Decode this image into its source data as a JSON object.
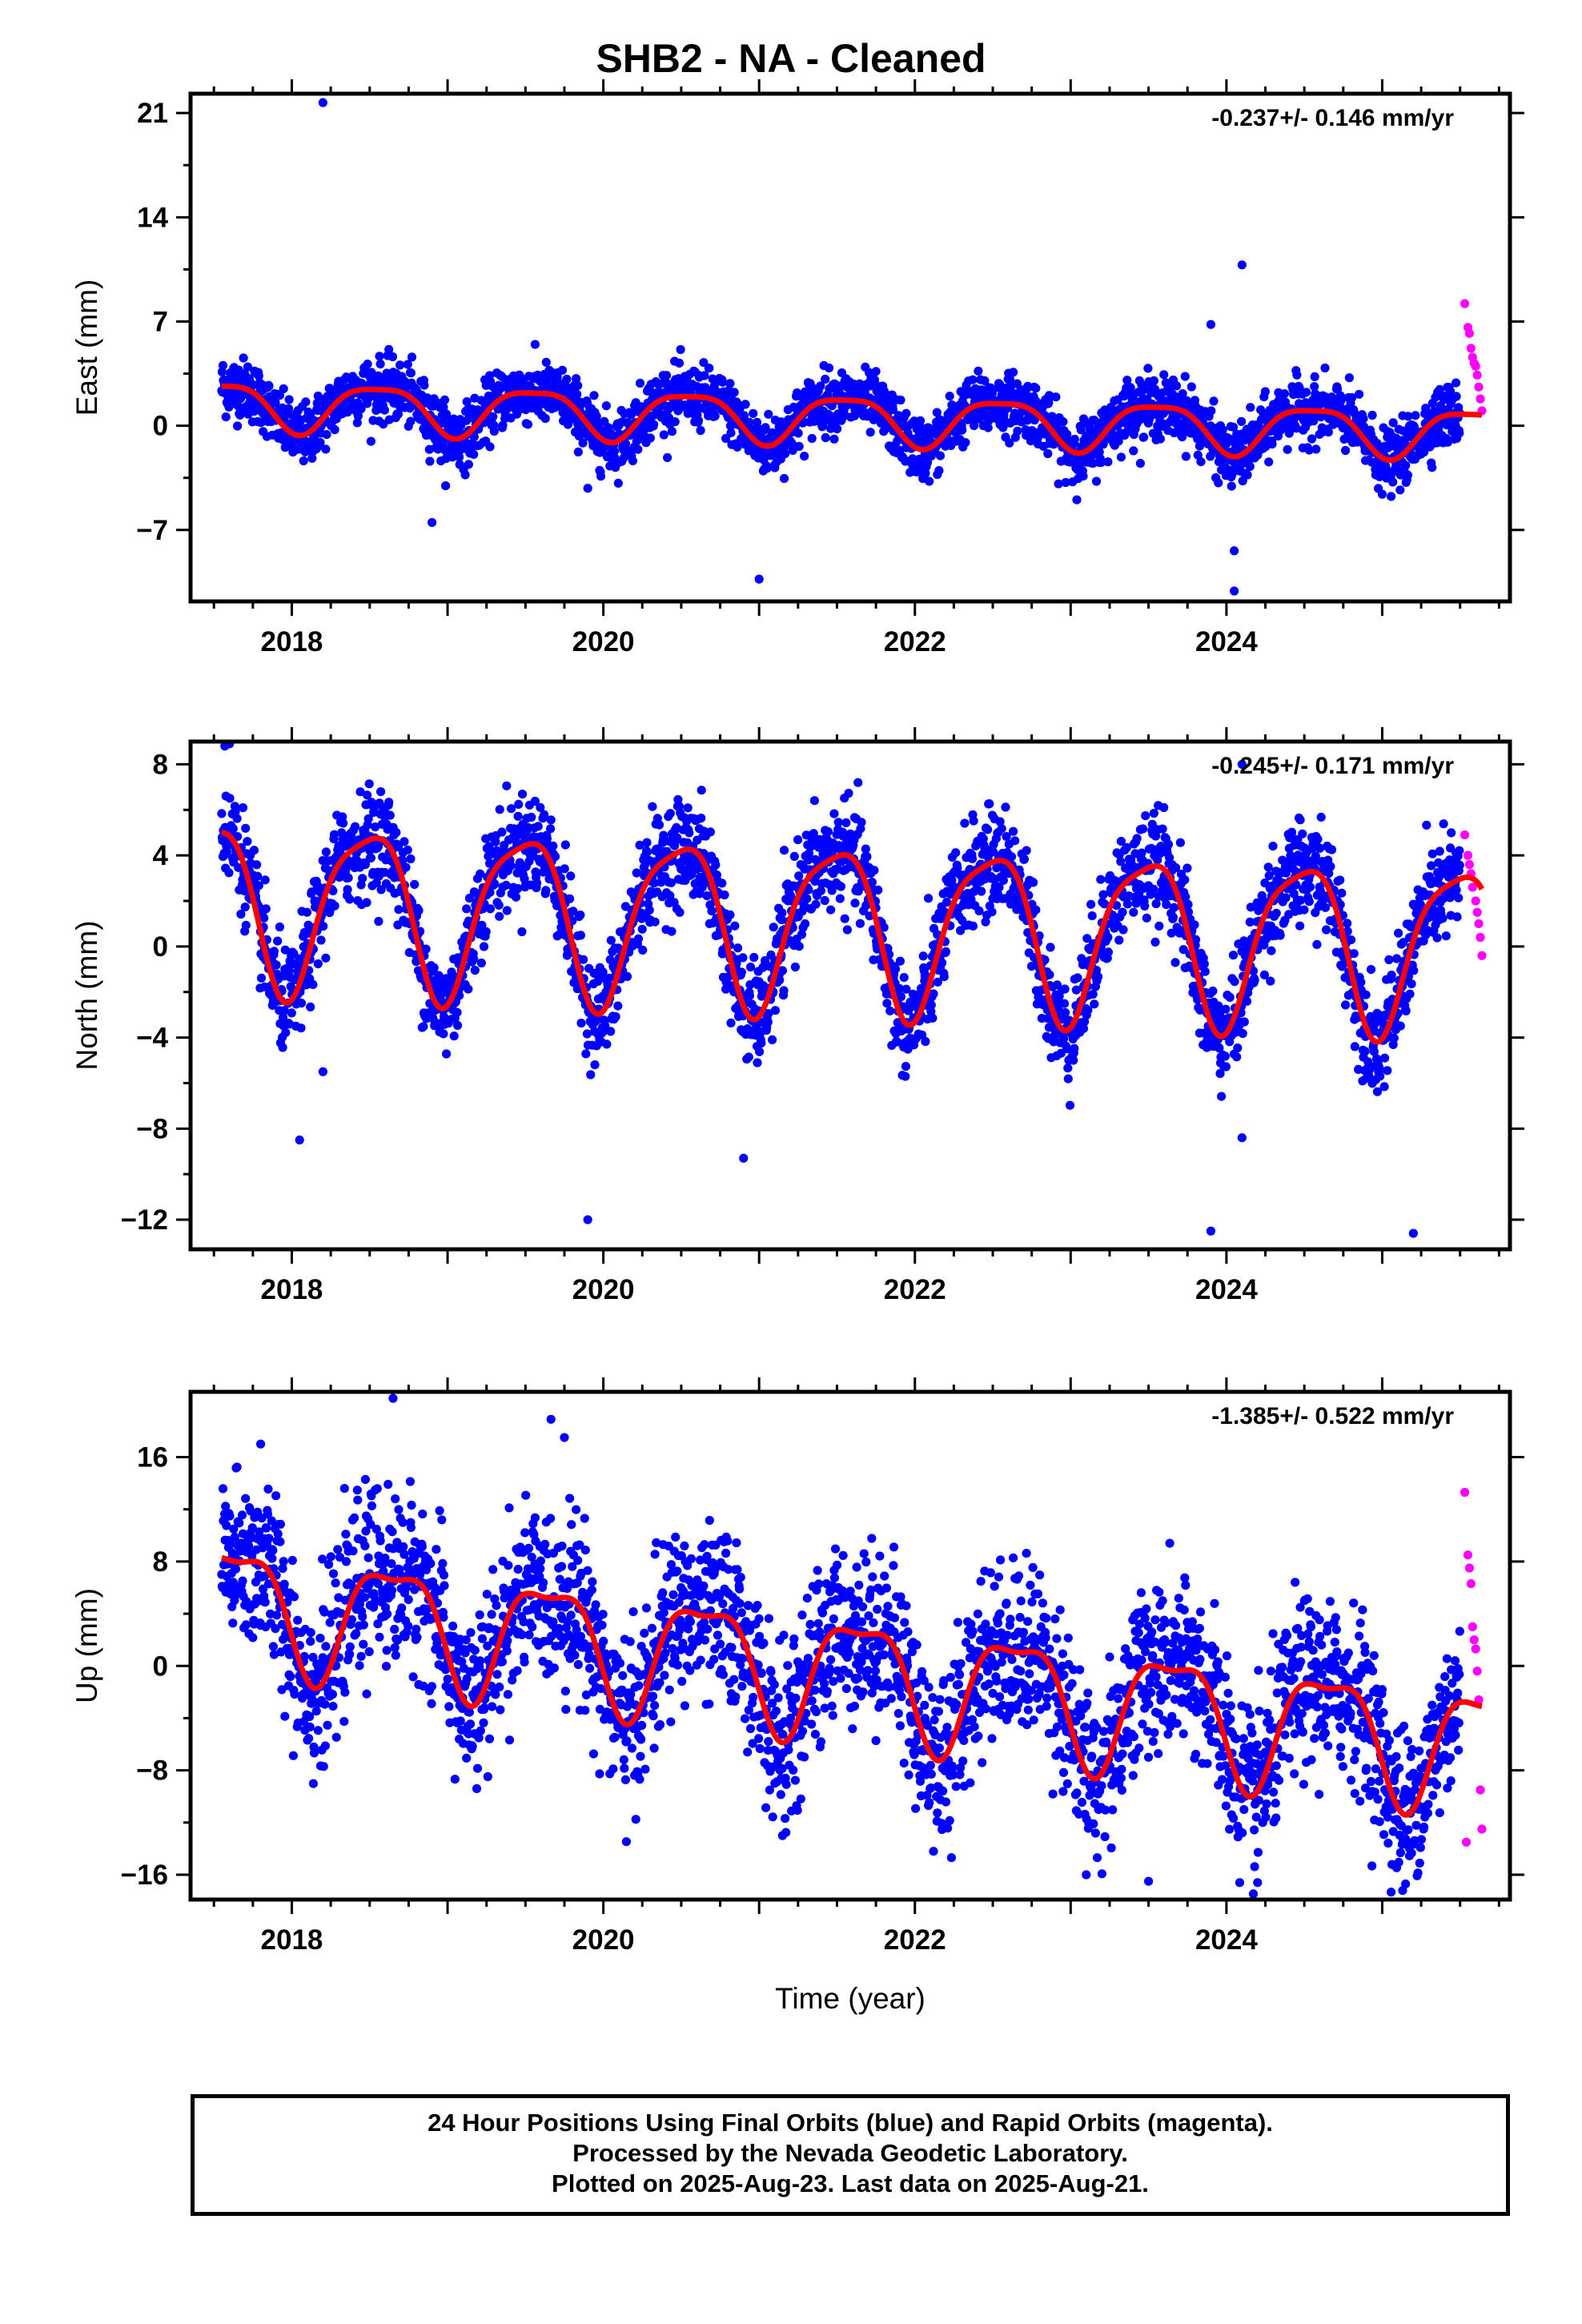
{
  "title": "SHB2  - NA - Cleaned",
  "colors": {
    "final_orbits": "#0000ff",
    "rapid_orbits": "#ff00ff",
    "model_fit": "#ff0000",
    "frame": "#000000"
  },
  "footer": {
    "line1": "24 Hour Positions Using Final Orbits (blue) and Rapid Orbits (magenta).",
    "line2": "Processed by the Nevada Geodetic Laboratory.",
    "line3": "Plotted on 2025-Aug-23. Last data on 2025-Aug-21."
  },
  "chart_data": [
    {
      "type": "scatter",
      "ylabel": "East (mm)",
      "xlabel": "",
      "rate": "-0.237+/- 0.146 mm/yr",
      "xlim": [
        2017.35,
        2025.82
      ],
      "ylim": [
        -11.8,
        22.3
      ],
      "yticks": [
        -7,
        0,
        7,
        14,
        21
      ],
      "xticks": [
        2018,
        2020,
        2022,
        2024
      ],
      "xstart": 2017.55,
      "xend_final": 2025.5,
      "rapid_start": 2025.52,
      "xend": 2025.64,
      "model": {
        "offset": 0.5,
        "trend": -0.237,
        "ref_year": 2021.6,
        "annual_amp": 1.6,
        "annual_phase_year": 2018.55,
        "semiannual_amp": 0.4,
        "semiannual_phase_year": 2018.3,
        "scatter_sd": 1.0
      },
      "outliers": [
        [
          2018.2,
          21.7
        ],
        [
          2024.1,
          10.8
        ],
        [
          2023.9,
          6.8
        ],
        [
          2021.0,
          -10.3
        ],
        [
          2024.05,
          -8.4
        ],
        [
          2024.05,
          -11.1
        ],
        [
          2018.9,
          -6.5
        ],
        [
          2019.9,
          -4.2
        ],
        [
          2025.0,
          -4.6
        ]
      ],
      "rapid_points": [
        [
          2025.53,
          8.2
        ],
        [
          2025.55,
          6.6
        ],
        [
          2025.57,
          5.2
        ],
        [
          2025.58,
          4.6
        ],
        [
          2025.6,
          4.0
        ],
        [
          2025.61,
          3.4
        ],
        [
          2025.62,
          2.6
        ],
        [
          2025.63,
          1.8
        ],
        [
          2025.64,
          1.0
        ],
        [
          2025.56,
          6.2
        ],
        [
          2025.59,
          4.2
        ]
      ]
    },
    {
      "type": "scatter",
      "ylabel": "North (mm)",
      "xlabel": "",
      "rate": "-0.245+/- 0.171 mm/yr",
      "xlim": [
        2017.35,
        2025.82
      ],
      "ylim": [
        -13.3,
        9.0
      ],
      "yticks": [
        -12,
        -8,
        -4,
        0,
        4,
        8
      ],
      "xticks": [
        2018,
        2020,
        2022,
        2024
      ],
      "xstart": 2017.55,
      "xend_final": 2025.5,
      "rapid_start": 2025.52,
      "xend": 2025.64,
      "model": {
        "offset": 1.0,
        "trend": -0.245,
        "ref_year": 2021.6,
        "annual_amp": 3.6,
        "annual_phase_year": 2018.48,
        "semiannual_amp": 0.8,
        "semiannual_phase_year": 2018.2,
        "scatter_sd": 1.1
      },
      "outliers": [
        [
          2017.57,
          8.8
        ],
        [
          2017.6,
          8.9
        ],
        [
          2018.05,
          -8.5
        ],
        [
          2019.9,
          -12.0
        ],
        [
          2020.9,
          -9.3
        ],
        [
          2023.9,
          -12.5
        ],
        [
          2025.2,
          -12.6
        ],
        [
          2024.1,
          8.0
        ],
        [
          2018.2,
          -5.5
        ],
        [
          2024.1,
          -8.4
        ]
      ],
      "rapid_points": [
        [
          2025.53,
          4.9
        ],
        [
          2025.55,
          4.0
        ],
        [
          2025.57,
          3.2
        ],
        [
          2025.58,
          2.6
        ],
        [
          2025.6,
          2.0
        ],
        [
          2025.61,
          1.5
        ],
        [
          2025.62,
          1.0
        ],
        [
          2025.63,
          0.4
        ],
        [
          2025.64,
          -0.4
        ],
        [
          2025.56,
          3.6
        ]
      ]
    },
    {
      "type": "scatter",
      "ylabel": "Up (mm)",
      "xlabel": "Time (year)",
      "rate": "-1.385+/- 0.522 mm/yr",
      "xlim": [
        2017.35,
        2025.82
      ],
      "ylim": [
        -17.9,
        21.0
      ],
      "yticks": [
        -16,
        -8,
        0,
        8,
        16
      ],
      "xticks": [
        2018,
        2020,
        2022,
        2024
      ],
      "xstart": 2017.55,
      "xend_final": 2025.5,
      "rapid_start": 2025.52,
      "xend": 2025.64,
      "model": {
        "offset": -0.5,
        "trend": -1.385,
        "ref_year": 2021.6,
        "annual_amp": 4.5,
        "annual_phase_year": 2018.65,
        "semiannual_amp": 1.5,
        "semiannual_phase_year": 2018.4,
        "scatter_sd": 3.2
      },
      "outliers": [
        [
          2018.65,
          20.5
        ],
        [
          2019.75,
          17.5
        ],
        [
          2017.8,
          17.0
        ],
        [
          2023.1,
          -16.0
        ],
        [
          2023.5,
          -16.5
        ],
        [
          2024.2,
          -16.6
        ],
        [
          2025.15,
          -16.7
        ],
        [
          2021.15,
          -13.0
        ]
      ],
      "rapid_points": [
        [
          2025.53,
          13.3
        ],
        [
          2025.55,
          8.5
        ],
        [
          2025.56,
          7.5
        ],
        [
          2025.57,
          6.3
        ],
        [
          2025.58,
          3.0
        ],
        [
          2025.59,
          2.0
        ],
        [
          2025.6,
          1.3
        ],
        [
          2025.61,
          -0.4
        ],
        [
          2025.62,
          -2.6
        ],
        [
          2025.63,
          -9.5
        ],
        [
          2025.64,
          -12.5
        ],
        [
          2025.54,
          -13.5
        ]
      ]
    }
  ]
}
